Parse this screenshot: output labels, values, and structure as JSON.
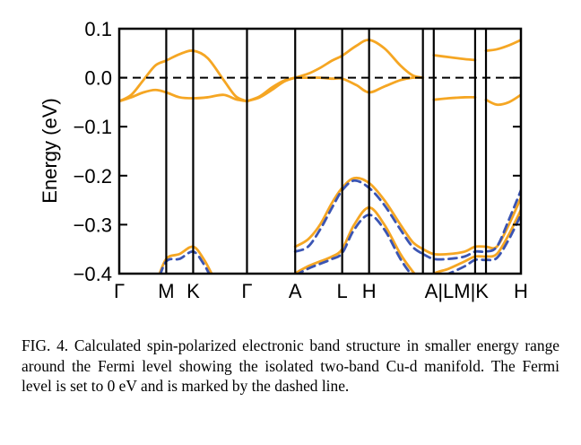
{
  "chart_data": {
    "type": "line",
    "title": "",
    "xlabel": "",
    "ylabel": "Energy (eV)",
    "ylim": [
      -0.4,
      0.1
    ],
    "yticks": [
      0.1,
      0.0,
      -0.1,
      -0.2,
      -0.3,
      -0.4
    ],
    "ytick_labels": [
      "0.1",
      "0.0",
      "−0.1",
      "−0.2",
      "−0.3",
      "−0.4"
    ],
    "xlim": [
      0,
      1
    ],
    "x_high_symmetry": [
      {
        "label": "Γ",
        "x": 0.0
      },
      {
        "label": "M",
        "x": 0.117
      },
      {
        "label": "K",
        "x": 0.184
      },
      {
        "label": "Γ",
        "x": 0.318
      },
      {
        "label": "A",
        "x": 0.438
      },
      {
        "label": "L",
        "x": 0.555
      },
      {
        "label": "H",
        "x": 0.622
      },
      {
        "label": "A",
        "x": 0.756
      },
      {
        "label": "L",
        "x": 0.783
      },
      {
        "label": "M",
        "x": 0.886
      },
      {
        "label": "K",
        "x": 0.913
      },
      {
        "label": "H",
        "x": 1.0
      }
    ],
    "x_tick_text": [
      {
        "text": "Γ",
        "x": 0.0
      },
      {
        "text": "M",
        "x": 0.117
      },
      {
        "text": "K",
        "x": 0.184
      },
      {
        "text": "Γ",
        "x": 0.318
      },
      {
        "text": "A",
        "x": 0.438
      },
      {
        "text": "L",
        "x": 0.555
      },
      {
        "text": "H",
        "x": 0.622
      },
      {
        "text": "A|LM|K",
        "x": 0.84
      },
      {
        "text": "H",
        "x": 1.0
      }
    ],
    "fermi_level": 0.0,
    "colors": {
      "spin_up": "#f5a623",
      "spin_down": "#3b55b3",
      "axes": "#000000"
    },
    "series": [
      {
        "style": "up",
        "x": [
          0,
          0.03,
          0.06,
          0.09,
          0.117,
          0.15,
          0.184,
          0.22,
          0.26,
          0.29,
          0.318
        ],
        "y": [
          -0.048,
          -0.035,
          -0.005,
          0.025,
          0.035,
          0.048,
          0.055,
          0.04,
          -0.005,
          -0.038,
          -0.048
        ]
      },
      {
        "style": "up",
        "x": [
          0,
          0.03,
          0.06,
          0.09,
          0.117,
          0.15,
          0.184,
          0.22,
          0.26,
          0.29,
          0.318
        ],
        "y": [
          -0.048,
          -0.04,
          -0.03,
          -0.025,
          -0.03,
          -0.04,
          -0.042,
          -0.04,
          -0.035,
          -0.044,
          -0.048
        ]
      },
      {
        "style": "up",
        "x": [
          0.318,
          0.35,
          0.38,
          0.41,
          0.438
        ],
        "y": [
          -0.048,
          -0.04,
          -0.025,
          -0.008,
          0.0
        ]
      },
      {
        "style": "up",
        "x": [
          0.318,
          0.35,
          0.38,
          0.41,
          0.438
        ],
        "y": [
          -0.048,
          -0.038,
          -0.02,
          -0.006,
          0.0
        ]
      },
      {
        "style": "up",
        "x": [
          0.438,
          0.47,
          0.5,
          0.53,
          0.555,
          0.59,
          0.622,
          0.66,
          0.7,
          0.73,
          0.756
        ],
        "y": [
          0.0,
          0.008,
          0.02,
          0.035,
          0.045,
          0.065,
          0.077,
          0.06,
          0.025,
          0.005,
          0.0
        ]
      },
      {
        "style": "up",
        "x": [
          0.438,
          0.47,
          0.5,
          0.53,
          0.555,
          0.59,
          0.622,
          0.66,
          0.7,
          0.73,
          0.756
        ],
        "y": [
          0.0,
          0.0,
          0.0,
          -0.002,
          -0.002,
          -0.015,
          -0.03,
          -0.018,
          -0.005,
          0.0,
          0.0
        ]
      },
      {
        "style": "up",
        "x": [
          0.783,
          0.82,
          0.86,
          0.886
        ],
        "y": [
          0.046,
          0.042,
          0.038,
          0.036
        ]
      },
      {
        "style": "up",
        "x": [
          0.783,
          0.82,
          0.86,
          0.886
        ],
        "y": [
          -0.045,
          -0.042,
          -0.04,
          -0.04
        ]
      },
      {
        "style": "up",
        "x": [
          0.913,
          0.94,
          0.97,
          1.0
        ],
        "y": [
          0.055,
          0.058,
          0.066,
          0.077
        ]
      },
      {
        "style": "up",
        "x": [
          0.913,
          0.94,
          0.97,
          1.0
        ],
        "y": [
          -0.045,
          -0.055,
          -0.05,
          -0.035
        ]
      },
      {
        "style": "up",
        "x": [
          0.0,
          0.03,
          0.06,
          0.09,
          0.117,
          0.15,
          0.184,
          0.21,
          0.23,
          0.25,
          0.27
        ],
        "y": [
          -0.43,
          -0.44,
          -0.45,
          -0.42,
          -0.37,
          -0.36,
          -0.345,
          -0.37,
          -0.4,
          -0.43,
          -0.45
        ]
      },
      {
        "style": "down",
        "x": [
          0.0,
          0.03,
          0.06,
          0.09,
          0.117,
          0.15,
          0.184,
          0.21,
          0.23,
          0.25,
          0.27
        ],
        "y": [
          -0.44,
          -0.45,
          -0.45,
          -0.425,
          -0.375,
          -0.37,
          -0.355,
          -0.38,
          -0.41,
          -0.44,
          -0.46
        ]
      },
      {
        "style": "up",
        "x": [
          0.438,
          0.47,
          0.5,
          0.53,
          0.555,
          0.585,
          0.622,
          0.66,
          0.7,
          0.73,
          0.756
        ],
        "y": [
          -0.345,
          -0.33,
          -0.3,
          -0.255,
          -0.225,
          -0.205,
          -0.215,
          -0.25,
          -0.3,
          -0.335,
          -0.35
        ]
      },
      {
        "style": "down",
        "x": [
          0.438,
          0.47,
          0.5,
          0.53,
          0.555,
          0.585,
          0.622,
          0.66,
          0.7,
          0.73,
          0.756
        ],
        "y": [
          -0.355,
          -0.345,
          -0.31,
          -0.265,
          -0.23,
          -0.21,
          -0.225,
          -0.26,
          -0.31,
          -0.345,
          -0.36
        ]
      },
      {
        "style": "up",
        "x": [
          0.38,
          0.41,
          0.438,
          0.47,
          0.5,
          0.53,
          0.555,
          0.585,
          0.622,
          0.66,
          0.7,
          0.73,
          0.756
        ],
        "y": [
          -0.46,
          -0.42,
          -0.4,
          -0.385,
          -0.375,
          -0.365,
          -0.35,
          -0.3,
          -0.265,
          -0.3,
          -0.36,
          -0.395,
          -0.42
        ]
      },
      {
        "style": "down",
        "x": [
          0.38,
          0.41,
          0.438,
          0.47,
          0.5,
          0.53,
          0.555,
          0.585,
          0.622,
          0.66,
          0.7,
          0.73,
          0.756
        ],
        "y": [
          -0.47,
          -0.43,
          -0.405,
          -0.39,
          -0.38,
          -0.37,
          -0.358,
          -0.31,
          -0.28,
          -0.31,
          -0.37,
          -0.405,
          -0.43
        ]
      },
      {
        "style": "up",
        "x": [
          0.756,
          0.783,
          0.82,
          0.86,
          0.886,
          0.913,
          0.94,
          0.97,
          1.0
        ],
        "y": [
          -0.35,
          -0.36,
          -0.36,
          -0.355,
          -0.345,
          -0.345,
          -0.345,
          -0.3,
          -0.245
        ]
      },
      {
        "style": "down",
        "x": [
          0.756,
          0.783,
          0.82,
          0.86,
          0.886,
          0.913,
          0.94,
          0.97,
          1.0
        ],
        "y": [
          -0.36,
          -0.37,
          -0.37,
          -0.365,
          -0.355,
          -0.355,
          -0.345,
          -0.29,
          -0.23
        ]
      },
      {
        "style": "up",
        "x": [
          0.756,
          0.783,
          0.82,
          0.86,
          0.886,
          0.913,
          0.94,
          0.97,
          1.0
        ],
        "y": [
          -0.42,
          -0.4,
          -0.39,
          -0.375,
          -0.365,
          -0.365,
          -0.36,
          -0.32,
          -0.27
        ]
      },
      {
        "style": "down",
        "x": [
          0.756,
          0.783,
          0.82,
          0.86,
          0.886,
          0.913,
          0.94,
          0.97,
          1.0
        ],
        "y": [
          -0.43,
          -0.41,
          -0.4,
          -0.385,
          -0.372,
          -0.372,
          -0.368,
          -0.33,
          -0.28
        ]
      }
    ]
  },
  "caption": "FIG. 4. Calculated spin-polarized electronic band structure in smaller energy range around the Fermi level showing the isolated two-band Cu-d manifold. The Fermi level is set to 0 eV and is marked by the dashed line."
}
